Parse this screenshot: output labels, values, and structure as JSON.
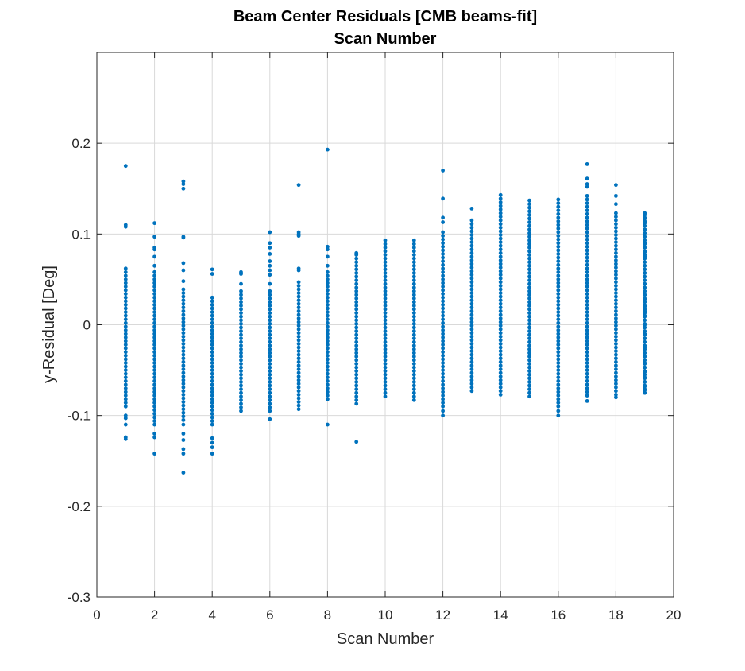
{
  "colors": {
    "series": "#0072bd",
    "grid": "#d9d9d9",
    "axis": "#262626",
    "background": "#ffffff"
  },
  "chart_data": {
    "type": "scatter",
    "title": "Beam Center Residuals [CMB beams-fit]",
    "subtitle": "Scan Number",
    "xlabel": "Scan Number",
    "ylabel": "y-Residual [Deg]",
    "xlim": [
      0,
      20
    ],
    "ylim": [
      -0.3,
      0.3
    ],
    "xticks": [
      0,
      2,
      4,
      6,
      8,
      10,
      12,
      14,
      16,
      18,
      20
    ],
    "yticks": [
      -0.3,
      -0.2,
      -0.1,
      0,
      0.1,
      0.2
    ],
    "xtick_labels": [
      "0",
      "2",
      "4",
      "6",
      "8",
      "10",
      "12",
      "14",
      "16",
      "18",
      "20"
    ],
    "ytick_labels": [
      "-0.3",
      "-0.2",
      "-0.1",
      "0",
      "0.1",
      "0.2"
    ],
    "grid": true,
    "marker": "dot",
    "scans": [
      {
        "x": 1,
        "dense": [
          -0.09,
          0.065
        ],
        "outliers": [
          0.175,
          0.11,
          0.108,
          -0.1,
          -0.103,
          -0.11,
          -0.124,
          -0.126
        ]
      },
      {
        "x": 2,
        "dense": [
          -0.11,
          0.06
        ],
        "outliers": [
          0.112,
          0.097,
          0.085,
          0.083,
          0.075,
          0.065,
          -0.12,
          -0.124,
          -0.142
        ]
      },
      {
        "x": 3,
        "dense": [
          -0.105,
          0.04
        ],
        "outliers": [
          0.158,
          0.155,
          0.15,
          0.097,
          0.096,
          0.068,
          0.06,
          0.048,
          -0.11,
          -0.12,
          -0.127,
          -0.137,
          -0.142,
          -0.163
        ]
      },
      {
        "x": 4,
        "dense": [
          -0.11,
          0.03
        ],
        "outliers": [
          0.061,
          0.056,
          -0.125,
          -0.13,
          -0.135,
          -0.142
        ]
      },
      {
        "x": 5,
        "dense": [
          -0.095,
          0.037
        ],
        "outliers": [
          0.058,
          0.056,
          0.045
        ]
      },
      {
        "x": 6,
        "dense": [
          -0.095,
          0.04
        ],
        "outliers": [
          0.102,
          0.09,
          0.085,
          0.078,
          0.07,
          0.065,
          0.06,
          0.055,
          0.045,
          -0.104
        ]
      },
      {
        "x": 7,
        "dense": [
          -0.093,
          0.05
        ],
        "outliers": [
          0.154,
          0.102,
          0.1,
          0.098,
          0.062,
          0.06
        ]
      },
      {
        "x": 8,
        "dense": [
          -0.082,
          0.06
        ],
        "outliers": [
          0.193,
          0.086,
          0.083,
          0.075,
          0.065,
          -0.11
        ]
      },
      {
        "x": 9,
        "dense": [
          -0.087,
          0.073
        ],
        "outliers": [
          0.079,
          0.077,
          -0.129
        ]
      },
      {
        "x": 10,
        "dense": [
          -0.079,
          0.093
        ],
        "outliers": []
      },
      {
        "x": 11,
        "dense": [
          -0.083,
          0.096
        ],
        "outliers": []
      },
      {
        "x": 12,
        "dense": [
          -0.09,
          0.105
        ],
        "outliers": [
          0.17,
          0.139,
          0.118,
          0.113,
          -0.095,
          -0.1
        ]
      },
      {
        "x": 13,
        "dense": [
          -0.073,
          0.118
        ],
        "outliers": [
          0.128
        ]
      },
      {
        "x": 14,
        "dense": [
          -0.077,
          0.144
        ],
        "outliers": []
      },
      {
        "x": 15,
        "dense": [
          -0.079,
          0.14
        ],
        "outliers": []
      },
      {
        "x": 16,
        "dense": [
          -0.09,
          0.14
        ],
        "outliers": [
          -0.095,
          -0.1
        ]
      },
      {
        "x": 17,
        "dense": [
          -0.078,
          0.145
        ],
        "outliers": [
          0.177,
          0.161,
          0.155,
          0.152,
          -0.084
        ]
      },
      {
        "x": 18,
        "dense": [
          -0.077,
          0.125
        ],
        "outliers": [
          0.154,
          0.142,
          0.133,
          -0.08
        ]
      },
      {
        "x": 19,
        "dense": [
          -0.075,
          0.123
        ],
        "outliers": [
          0.123,
          0.118,
          0.114,
          0.112,
          0.105,
          0.09,
          0.085,
          0.08,
          0.075,
          0.065,
          0.057,
          0.045,
          0.033,
          0.028,
          0.02,
          0.015,
          0.01,
          0.0,
          -0.01,
          -0.015,
          -0.025,
          -0.035,
          -0.042,
          -0.047,
          -0.052,
          -0.058,
          -0.063,
          -0.068,
          -0.072,
          -0.075
        ]
      }
    ]
  }
}
